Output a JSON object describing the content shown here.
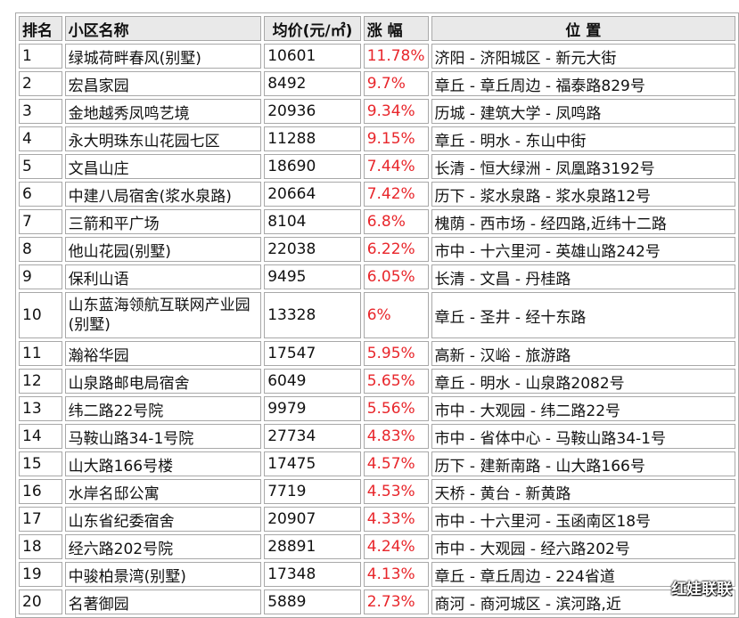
{
  "table": {
    "headers": [
      "排名",
      "小区名称",
      "均价(元/㎡)",
      "涨 幅",
      "位 置"
    ],
    "rows": [
      {
        "rank": "1",
        "name": "绿城荷畔春风(别墅)",
        "price": "10601",
        "change": "11.78%",
        "location": "济阳 - 济阳城区 - 新元大街"
      },
      {
        "rank": "2",
        "name": "宏昌家园",
        "price": "8492",
        "change": "9.7%",
        "location": "章丘 - 章丘周边 - 福泰路829号"
      },
      {
        "rank": "3",
        "name": "金地越秀凤鸣艺境",
        "price": "20936",
        "change": "9.34%",
        "location": "历城 - 建筑大学 - 凤鸣路"
      },
      {
        "rank": "4",
        "name": "永大明珠东山花园七区",
        "price": "11288",
        "change": "9.15%",
        "location": "章丘 - 明水 - 东山中街"
      },
      {
        "rank": "5",
        "name": "文昌山庄",
        "price": "18690",
        "change": "7.44%",
        "location": "长清 - 恒大绿洲 - 凤凰路3192号"
      },
      {
        "rank": "6",
        "name": "中建八局宿舍(浆水泉路)",
        "price": "20664",
        "change": "7.42%",
        "location": "历下 - 浆水泉路 - 浆水泉路12号"
      },
      {
        "rank": "7",
        "name": "三箭和平广场",
        "price": "8104",
        "change": "6.8%",
        "location": "槐荫 - 西市场 - 经四路,近纬十二路"
      },
      {
        "rank": "8",
        "name": "他山花园(别墅)",
        "price": "22038",
        "change": "6.22%",
        "location": "市中 - 十六里河 - 英雄山路242号"
      },
      {
        "rank": "9",
        "name": "保利山语",
        "price": "9495",
        "change": "6.05%",
        "location": "长清 - 文昌 - 丹桂路"
      },
      {
        "rank": "10",
        "name": "山东蓝海领航互联网产业园(别墅)",
        "price": "13328",
        "change": "6%",
        "location": "章丘 - 圣井 - 经十东路"
      },
      {
        "rank": "11",
        "name": "瀚裕华园",
        "price": "17547",
        "change": "5.95%",
        "location": "高新 - 汉峪 - 旅游路"
      },
      {
        "rank": "12",
        "name": "山泉路邮电局宿舍",
        "price": "6049",
        "change": "5.65%",
        "location": "章丘 - 明水 - 山泉路2082号"
      },
      {
        "rank": "13",
        "name": "纬二路22号院",
        "price": "9979",
        "change": "5.56%",
        "location": "市中 - 大观园 - 纬二路22号"
      },
      {
        "rank": "14",
        "name": "马鞍山路34-1号院",
        "price": "27734",
        "change": "4.83%",
        "location": "市中 - 省体中心 - 马鞍山路34-1号"
      },
      {
        "rank": "15",
        "name": "山大路166号楼",
        "price": "17475",
        "change": "4.57%",
        "location": "历下 - 建新南路 - 山大路166号"
      },
      {
        "rank": "16",
        "name": "水岸名邸公寓",
        "price": "7719",
        "change": "4.53%",
        "location": "天桥 - 黄台 - 新黄路"
      },
      {
        "rank": "17",
        "name": "山东省纪委宿舍",
        "price": "20907",
        "change": "4.33%",
        "location": "市中 - 十六里河 - 玉函南区18号"
      },
      {
        "rank": "18",
        "name": "经六路202号院",
        "price": "28891",
        "change": "4.24%",
        "location": "市中 - 大观园 - 经六路202号"
      },
      {
        "rank": "19",
        "name": "中骏柏景湾(别墅)",
        "price": "17348",
        "change": "4.13%",
        "location": "章丘 - 章丘周边 - 224省道"
      },
      {
        "rank": "20",
        "name": "名著御园",
        "price": "5889",
        "change": "2.73%",
        "location": "商河 - 商河城区 - 滨河路,近"
      }
    ]
  },
  "watermark": "红娃联联",
  "colors": {
    "change_text": "#e8262b",
    "header_bg": "#e9e9e9",
    "border": "#a8a8a8"
  }
}
